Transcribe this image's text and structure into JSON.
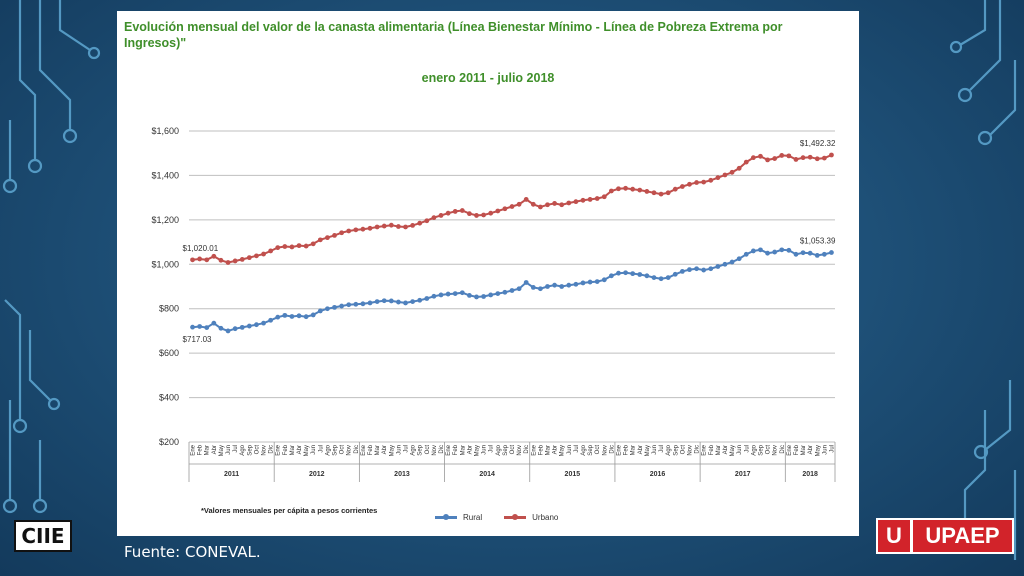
{
  "slide": {
    "title": "Evolución mensual del valor de la canasta alimentaria (Línea Bienestar Mínimo - Línea de Pobreza Extrema por Ingresos)\"",
    "subtitle": "enero 2011 - julio 2018",
    "footnote": "*Valores mensuales per cápita a pesos corrientes",
    "source": "Fuente: CONEVAL.",
    "logo_left": "CIIE",
    "logo_right_letter": "U",
    "logo_right_word": "UPAEP"
  },
  "colors": {
    "rural": "#4f81bd",
    "urbano": "#c0504d",
    "grid": "#bfbfbf",
    "title_green": "#3f8f2a"
  },
  "chart_data": {
    "type": "line",
    "title": "Evolución mensual del valor de la canasta alimentaria (Línea Bienestar Mínimo - Línea de Pobreza Extrema por Ingresos)\"",
    "subtitle": "enero 2011 - julio 2018",
    "xlabel": "",
    "ylabel": "",
    "ylim": [
      200,
      1600
    ],
    "yticks": [
      200,
      400,
      600,
      800,
      1000,
      1200,
      1400,
      1600
    ],
    "ytick_labels": [
      "$200",
      "$400",
      "$600",
      "$800",
      "$1,000",
      "$1,200",
      "$1,400",
      "$1,600"
    ],
    "grid": true,
    "legend": "bottom",
    "month_labels": [
      "Ene",
      "Feb",
      "Mar",
      "Abr",
      "May",
      "Jun",
      "Jul",
      "Ago",
      "Sep",
      "Oct",
      "Nov",
      "Dic"
    ],
    "years": [
      "2011",
      "2012",
      "2013",
      "2014",
      "2015",
      "2016",
      "2017",
      "2018"
    ],
    "last_year_months": 7,
    "annotations": [
      {
        "series": "Urbano",
        "index": 0,
        "text": "$1,020.01",
        "pos": "above"
      },
      {
        "series": "Rural",
        "index": 0,
        "text": "$717.03",
        "pos": "below"
      },
      {
        "series": "Urbano",
        "index": 90,
        "text": "$1,492.32",
        "pos": "above"
      },
      {
        "series": "Rural",
        "index": 90,
        "text": "$1,053.39",
        "pos": "above"
      }
    ],
    "series": [
      {
        "name": "Rural",
        "color": "#4f81bd",
        "values": [
          717,
          720,
          715,
          735,
          712,
          700,
          710,
          716,
          722,
          728,
          735,
          748,
          762,
          770,
          765,
          768,
          764,
          772,
          790,
          800,
          806,
          812,
          818,
          820,
          822,
          826,
          832,
          836,
          835,
          830,
          826,
          832,
          838,
          846,
          856,
          862,
          866,
          868,
          872,
          860,
          853,
          855,
          862,
          868,
          874,
          882,
          890,
          918,
          896,
          890,
          900,
          906,
          900,
          906,
          910,
          916,
          920,
          922,
          930,
          948,
          960,
          962,
          958,
          954,
          948,
          940,
          935,
          940,
          955,
          968,
          976,
          980,
          974,
          980,
          990,
          1000,
          1010,
          1025,
          1045,
          1060,
          1065,
          1050,
          1055,
          1065,
          1063,
          1045,
          1052,
          1050,
          1040,
          1045,
          1053
        ]
      },
      {
        "name": "Urbano",
        "color": "#c0504d",
        "values": [
          1020,
          1024,
          1020,
          1036,
          1018,
          1008,
          1015,
          1022,
          1030,
          1038,
          1046,
          1060,
          1075,
          1080,
          1078,
          1084,
          1082,
          1092,
          1110,
          1120,
          1130,
          1142,
          1150,
          1155,
          1158,
          1162,
          1168,
          1172,
          1176,
          1170,
          1168,
          1175,
          1185,
          1196,
          1210,
          1220,
          1230,
          1238,
          1242,
          1228,
          1220,
          1222,
          1230,
          1240,
          1250,
          1260,
          1270,
          1292,
          1270,
          1258,
          1268,
          1274,
          1268,
          1276,
          1282,
          1288,
          1292,
          1296,
          1304,
          1330,
          1340,
          1342,
          1338,
          1334,
          1328,
          1322,
          1316,
          1322,
          1338,
          1350,
          1360,
          1368,
          1370,
          1378,
          1390,
          1402,
          1414,
          1432,
          1460,
          1480,
          1486,
          1470,
          1476,
          1490,
          1488,
          1472,
          1480,
          1482,
          1475,
          1478,
          1492
        ]
      }
    ]
  }
}
